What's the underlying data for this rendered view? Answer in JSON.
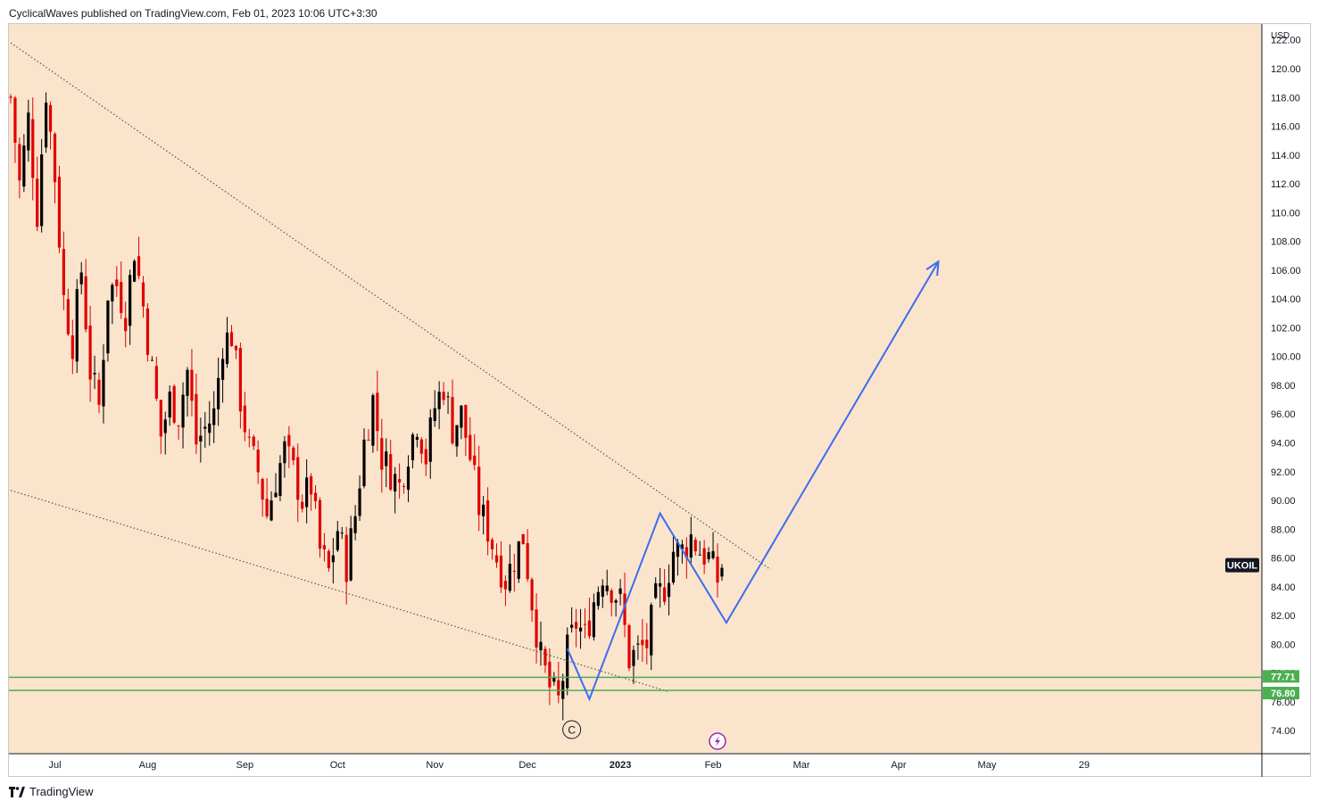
{
  "header": {
    "text": "CyclicalWaves published on TradingView.com, Feb 01, 2023 10:06 UTC+3:30"
  },
  "footer": {
    "logo_text": "TradingView",
    "logo_icon": "tradingview-logo-icon"
  },
  "colors": {
    "background": "#fbe4cc",
    "candle_up": "#000000",
    "candle_down": "#e00000",
    "projection": "#3a6df0",
    "support": "#4caf50",
    "trendline": "#555555"
  },
  "chart_data": {
    "type": "candlestick",
    "symbol": "UKOIL",
    "currency": "USD",
    "ylim": [
      72.4,
      123.1
    ],
    "y_ticks": [
      "74.00",
      "76.00",
      "78.00",
      "80.00",
      "82.00",
      "84.00",
      "86.00",
      "88.00",
      "90.00",
      "92.00",
      "94.00",
      "96.00",
      "98.00",
      "100.00",
      "102.00",
      "104.00",
      "106.00",
      "108.00",
      "110.00",
      "112.00",
      "114.00",
      "116.00",
      "118.00",
      "120.00",
      "122.00"
    ],
    "x_ticks": [
      {
        "label": "Jul",
        "bar": 10
      },
      {
        "label": "Aug",
        "bar": 31
      },
      {
        "label": "Sep",
        "bar": 53
      },
      {
        "label": "Oct",
        "bar": 74
      },
      {
        "label": "Nov",
        "bar": 96
      },
      {
        "label": "Dec",
        "bar": 117
      },
      {
        "label": "2023",
        "bar": 138
      },
      {
        "label": "Feb",
        "bar": 159
      },
      {
        "label": "Mar",
        "bar": 179
      },
      {
        "label": "Apr",
        "bar": 201
      },
      {
        "label": "May",
        "bar": 221
      },
      {
        "label": "29",
        "bar": 243
      }
    ],
    "price_label": "UKOIL",
    "support_levels": [
      {
        "value": 77.71,
        "label": "77.71"
      },
      {
        "value": 76.8,
        "label": "76.80"
      }
    ],
    "wave_label": "C",
    "closes": [
      {
        "bar": 0,
        "close": 118.0
      },
      {
        "bar": 2,
        "close": 112.0
      },
      {
        "bar": 4,
        "close": 116.5
      },
      {
        "bar": 6,
        "close": 110.0
      },
      {
        "bar": 8,
        "close": 118.5
      },
      {
        "bar": 10,
        "close": 112.5
      },
      {
        "bar": 12,
        "close": 104.0
      },
      {
        "bar": 14,
        "close": 101.0
      },
      {
        "bar": 16,
        "close": 106.0
      },
      {
        "bar": 18,
        "close": 99.0
      },
      {
        "bar": 20,
        "close": 96.5
      },
      {
        "bar": 22,
        "close": 104.5
      },
      {
        "bar": 24,
        "close": 105.0
      },
      {
        "bar": 26,
        "close": 103.0
      },
      {
        "bar": 28,
        "close": 107.5
      },
      {
        "bar": 30,
        "close": 103.5
      },
      {
        "bar": 32,
        "close": 99.0
      },
      {
        "bar": 34,
        "close": 94.5
      },
      {
        "bar": 36,
        "close": 97.0
      },
      {
        "bar": 38,
        "close": 96.0
      },
      {
        "bar": 40,
        "close": 99.0
      },
      {
        "bar": 42,
        "close": 94.0
      },
      {
        "bar": 44,
        "close": 95.0
      },
      {
        "bar": 46,
        "close": 96.0
      },
      {
        "bar": 48,
        "close": 101.0
      },
      {
        "bar": 50,
        "close": 101.5
      },
      {
        "bar": 52,
        "close": 97.0
      },
      {
        "bar": 54,
        "close": 93.5
      },
      {
        "bar": 56,
        "close": 92.0
      },
      {
        "bar": 58,
        "close": 89.0
      },
      {
        "bar": 60,
        "close": 91.5
      },
      {
        "bar": 62,
        "close": 93.5
      },
      {
        "bar": 64,
        "close": 92.0
      },
      {
        "bar": 66,
        "close": 90.0
      },
      {
        "bar": 68,
        "close": 91.0
      },
      {
        "bar": 70,
        "close": 86.5
      },
      {
        "bar": 72,
        "close": 85.0
      },
      {
        "bar": 74,
        "close": 88.0
      },
      {
        "bar": 76,
        "close": 85.5
      },
      {
        "bar": 78,
        "close": 89.0
      },
      {
        "bar": 80,
        "close": 94.0
      },
      {
        "bar": 82,
        "close": 97.0
      },
      {
        "bar": 84,
        "close": 93.0
      },
      {
        "bar": 86,
        "close": 92.0
      },
      {
        "bar": 88,
        "close": 91.0
      },
      {
        "bar": 90,
        "close": 93.5
      },
      {
        "bar": 92,
        "close": 95.5
      },
      {
        "bar": 94,
        "close": 93.0
      },
      {
        "bar": 96,
        "close": 96.5
      },
      {
        "bar": 98,
        "close": 98.0
      },
      {
        "bar": 100,
        "close": 95.0
      },
      {
        "bar": 102,
        "close": 96.0
      },
      {
        "bar": 104,
        "close": 93.0
      },
      {
        "bar": 106,
        "close": 89.5
      },
      {
        "bar": 108,
        "close": 88.0
      },
      {
        "bar": 110,
        "close": 86.0
      },
      {
        "bar": 112,
        "close": 84.5
      },
      {
        "bar": 114,
        "close": 86.0
      },
      {
        "bar": 116,
        "close": 87.5
      },
      {
        "bar": 118,
        "close": 83.0
      },
      {
        "bar": 120,
        "close": 79.0
      },
      {
        "bar": 122,
        "close": 77.0
      },
      {
        "bar": 124,
        "close": 76.0
      },
      {
        "bar": 126,
        "close": 79.5
      },
      {
        "bar": 128,
        "close": 81.5
      },
      {
        "bar": 130,
        "close": 80.5
      },
      {
        "bar": 132,
        "close": 83.0
      },
      {
        "bar": 134,
        "close": 85.0
      },
      {
        "bar": 136,
        "close": 84.0
      },
      {
        "bar": 138,
        "close": 83.0
      },
      {
        "bar": 140,
        "close": 79.0
      },
      {
        "bar": 142,
        "close": 79.5
      },
      {
        "bar": 144,
        "close": 80.0
      },
      {
        "bar": 146,
        "close": 83.0
      },
      {
        "bar": 148,
        "close": 84.0
      },
      {
        "bar": 150,
        "close": 86.5
      },
      {
        "bar": 152,
        "close": 86.5
      },
      {
        "bar": 154,
        "close": 87.5
      },
      {
        "bar": 156,
        "close": 86.5
      },
      {
        "bar": 158,
        "close": 86.0
      },
      {
        "bar": 160,
        "close": 84.5
      },
      {
        "bar": 161,
        "close": 85.5
      }
    ],
    "projection": [
      {
        "bar": 126,
        "value": 79.7
      },
      {
        "bar": 131,
        "value": 76.2
      },
      {
        "bar": 147,
        "value": 89.1
      },
      {
        "bar": 162,
        "value": 81.5
      },
      {
        "bar": 210,
        "value": 106.6
      }
    ],
    "trendlines": [
      {
        "from": {
          "bar": 0,
          "value": 121.8
        },
        "to": {
          "bar": 172,
          "value": 85.2
        }
      },
      {
        "from": {
          "bar": 0,
          "value": 90.7
        },
        "to": {
          "bar": 149,
          "value": 76.7
        }
      }
    ]
  }
}
